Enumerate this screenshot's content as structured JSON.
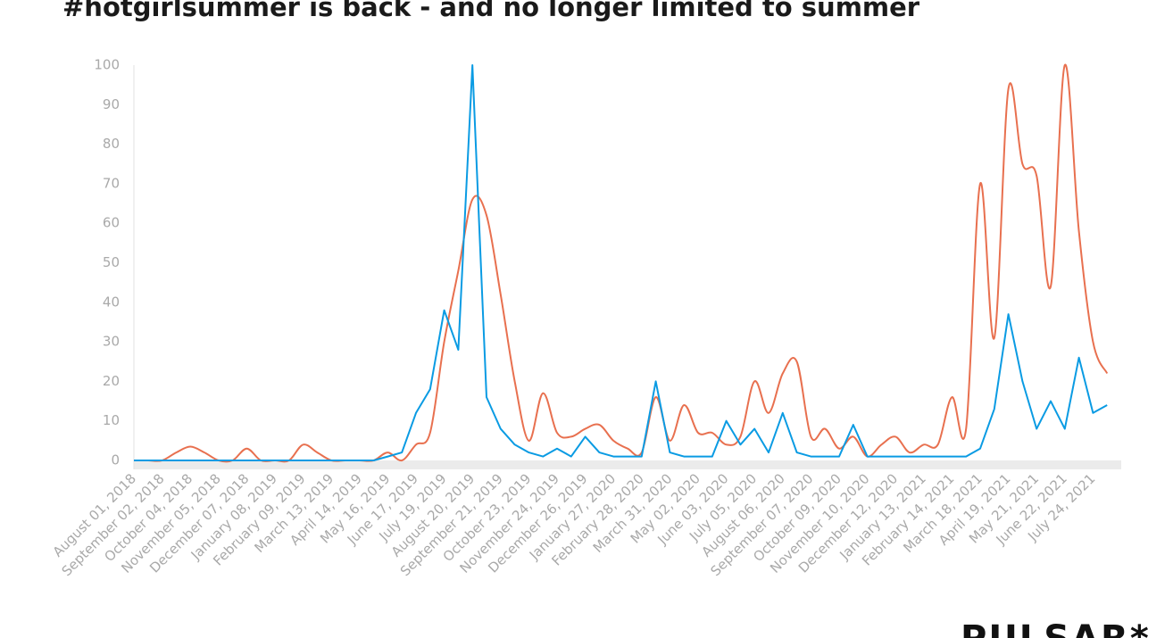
{
  "chart_data": {
    "type": "line",
    "title": "#hotgirlsummer is back - and no longer limited to summer",
    "categories": [
      "August 01, 2018",
      null,
      "September 02, 2018",
      null,
      "October 04, 2018",
      null,
      "November 05, 2018",
      null,
      "December 07, 2018",
      null,
      "January 08, 2019",
      null,
      "February 09, 2019",
      null,
      "March 13, 2019",
      null,
      "April 14, 2019",
      null,
      "May 16, 2019",
      null,
      "June 17, 2019",
      null,
      "July 19, 2019",
      null,
      "August 20, 2019",
      null,
      "September 21, 2019",
      null,
      "October 23, 2019",
      null,
      "November 24, 2019",
      null,
      "December 26, 2019",
      null,
      "January 27, 2020",
      null,
      "February 28, 2020",
      null,
      "March 31, 2020",
      null,
      "May 02, 2020",
      null,
      "June 03, 2020",
      null,
      "July 05, 2020",
      null,
      "August 06, 2020",
      null,
      "September 07, 2020",
      null,
      "October 09, 2020",
      null,
      "November 10, 2020",
      null,
      "December 12, 2020",
      null,
      "January 13, 2021",
      null,
      "February 14, 2021",
      null,
      "March 18, 2021",
      null,
      "April 19, 2021",
      null,
      "May 21, 2021",
      null,
      "June 22, 2021",
      null,
      "July 24, 2021",
      null
    ],
    "series": [
      {
        "color": "#e8704f",
        "smooth": true,
        "values": [
          0,
          0,
          0,
          2,
          3.5,
          2,
          0,
          0,
          3,
          0,
          0,
          0,
          4,
          2,
          0,
          0,
          0,
          0,
          2,
          0,
          4,
          7,
          30,
          48,
          66,
          62,
          42,
          20,
          5,
          17,
          7,
          6,
          8,
          9,
          5,
          3,
          2,
          16,
          5,
          14,
          7,
          7,
          4,
          6,
          20,
          12,
          22,
          25,
          6,
          8,
          3,
          6,
          1,
          4,
          6,
          2,
          4,
          4,
          16,
          8,
          70,
          31,
          94,
          75,
          72,
          44,
          100,
          58,
          30,
          22
        ]
      },
      {
        "color": "#0a9be3",
        "smooth": false,
        "values": [
          0,
          0,
          0,
          0,
          0,
          0,
          0,
          0,
          0,
          0,
          0,
          0,
          0,
          0,
          0,
          0,
          0,
          0,
          1,
          2,
          12,
          18,
          38,
          28,
          100,
          16,
          8,
          4,
          2,
          1,
          3,
          1,
          6,
          2,
          1,
          1,
          1,
          20,
          2,
          1,
          1,
          1,
          10,
          4,
          8,
          2,
          12,
          2,
          1,
          1,
          1,
          9,
          1,
          1,
          1,
          1,
          1,
          1,
          1,
          1,
          3,
          13,
          37,
          20,
          8,
          15,
          8,
          26,
          12,
          14
        ]
      }
    ],
    "ylim": [
      0,
      100
    ],
    "yticks": [
      0,
      10,
      20,
      30,
      40,
      50,
      60,
      70,
      80,
      90,
      100
    ],
    "grid": false
  },
  "logo": "PULSAR*"
}
